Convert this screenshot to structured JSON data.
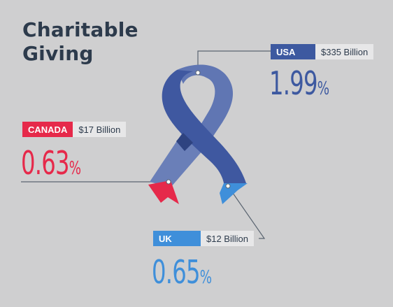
{
  "title_line1": "Charitable",
  "title_line2": "Giving",
  "chart_data": {
    "type": "other",
    "title": "Charitable Giving",
    "series": [
      {
        "country": "USA",
        "amount": "$335 Billion",
        "percent": "1.99",
        "value": 1.99,
        "color": "#3d59a0"
      },
      {
        "country": "CANADA",
        "amount": "$17 Billion",
        "percent": "0.63",
        "value": 0.63,
        "color": "#e6294a"
      },
      {
        "country": "UK",
        "amount": "$12 Billion",
        "percent": "0.65",
        "value": 0.65,
        "color": "#3f8fda"
      }
    ],
    "percent_symbol": "%"
  }
}
